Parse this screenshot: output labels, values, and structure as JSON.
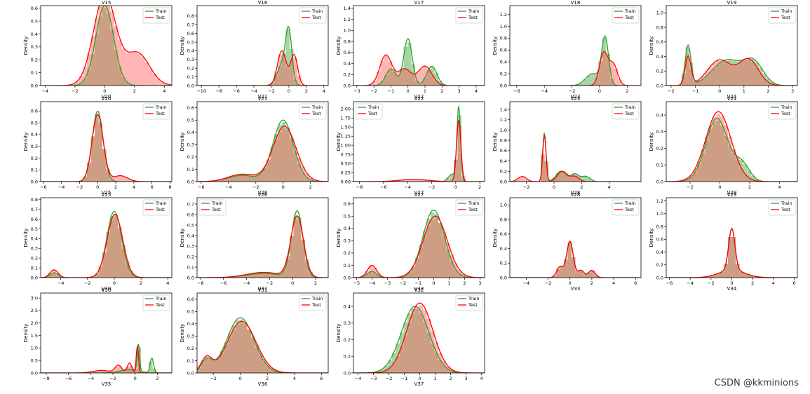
{
  "watermark": "CSDN @kkminions",
  "colors": {
    "train": "#2ca02c",
    "test": "#ff0000",
    "train_hist": "#3aa13a",
    "test_hist": "#ff5a5a"
  },
  "chart_data": [
    {
      "type": "area",
      "title": "V15",
      "xlabel": "V20",
      "ylabel": "Density",
      "xlim": [
        -4.3,
        4.5
      ],
      "ylim": [
        0,
        0.62
      ],
      "xticks": [
        -4,
        -2,
        0,
        2,
        4
      ],
      "yticks": [
        0.0,
        0.1,
        0.2,
        0.3,
        0.4,
        0.5,
        0.6
      ],
      "legend": "top-right",
      "series": [
        {
          "name": "Train",
          "components": [
            [
              0.62,
              0,
              0.6
            ]
          ]
        },
        {
          "name": "Test",
          "components": [
            [
              0.7,
              0,
              0.75
            ],
            [
              0.25,
              2.2,
              0.8
            ]
          ]
        }
      ]
    },
    {
      "type": "area",
      "title": "V16",
      "xlabel": "V21",
      "ylabel": "Density",
      "xlim": [
        -10.5,
        4.5
      ],
      "ylim": [
        0,
        0.92
      ],
      "xticks": [
        -10,
        -8,
        -6,
        -4,
        -2,
        0,
        2,
        4
      ],
      "yticks": [
        0.0,
        0.1,
        0.2,
        0.3,
        0.4,
        0.5,
        0.6,
        0.7,
        0.8
      ],
      "legend": "top-right",
      "series": [
        {
          "name": "Train",
          "components": [
            [
              0.55,
              0,
              0.35
            ],
            [
              0.25,
              -0.7,
              0.6
            ]
          ]
        },
        {
          "name": "Test",
          "components": [
            [
              0.4,
              -0.8,
              0.5
            ],
            [
              0.35,
              0.6,
              0.4
            ]
          ]
        }
      ]
    },
    {
      "type": "area",
      "title": "V17",
      "xlabel": "V22",
      "ylabel": "Density",
      "xlim": [
        -3.2,
        4.5
      ],
      "ylim": [
        0,
        1.45
      ],
      "xticks": [
        -3,
        -2,
        -1,
        0,
        1,
        2,
        3,
        4
      ],
      "yticks": [
        0.0,
        0.2,
        0.4,
        0.6,
        0.8,
        1.0,
        1.2,
        1.4
      ],
      "legend": "top-right",
      "series": [
        {
          "name": "Train",
          "components": [
            [
              0.85,
              0,
              0.25
            ],
            [
              0.3,
              -1,
              0.3
            ],
            [
              0.35,
              1.4,
              0.3
            ]
          ]
        },
        {
          "name": "Test",
          "components": [
            [
              0.55,
              -1.3,
              0.35
            ],
            [
              0.3,
              -0.2,
              0.4
            ],
            [
              0.35,
              1,
              0.4
            ]
          ]
        }
      ]
    },
    {
      "type": "area",
      "title": "V18",
      "xlabel": "V23",
      "ylabel": "Density",
      "xlim": [
        -6.5,
        3
      ],
      "ylim": [
        0,
        1.35
      ],
      "xticks": [
        -6,
        -4,
        -2,
        0,
        2
      ],
      "yticks": [
        0.0,
        0.2,
        0.4,
        0.6,
        0.8,
        1.0,
        1.2
      ],
      "legend": "top-right",
      "series": [
        {
          "name": "Train",
          "components": [
            [
              0.8,
              0.4,
              0.25
            ],
            [
              0.2,
              -0.5,
              0.5
            ]
          ]
        },
        {
          "name": "Test",
          "components": [
            [
              0.55,
              0.3,
              0.3
            ],
            [
              0.35,
              1,
              0.3
            ]
          ]
        }
      ]
    },
    {
      "type": "area",
      "title": "V19",
      "xlabel": "V24",
      "ylabel": "Density",
      "xlim": [
        -2.2,
        3.2
      ],
      "ylim": [
        0,
        1.1
      ],
      "xticks": [
        -2,
        -1,
        0,
        1,
        2,
        3
      ],
      "yticks": [
        0.0,
        0.2,
        0.4,
        0.6,
        0.8,
        1.0
      ],
      "legend": "top-right",
      "series": [
        {
          "name": "Train",
          "components": [
            [
              0.55,
              -1.3,
              0.12
            ],
            [
              0.35,
              0.3,
              0.6
            ],
            [
              0.3,
              1.4,
              0.4
            ]
          ]
        },
        {
          "name": "Test",
          "components": [
            [
              0.4,
              -1.3,
              0.12
            ],
            [
              0.35,
              0,
              0.5
            ],
            [
              0.35,
              1.2,
              0.4
            ]
          ]
        }
      ]
    },
    {
      "type": "area",
      "title": "V20",
      "xlabel": "V25",
      "ylabel": "Density",
      "xlim": [
        -6.3,
        8.2
      ],
      "ylim": [
        0,
        0.68
      ],
      "xticks": [
        -6,
        -4,
        -2,
        0,
        2,
        4,
        6,
        8
      ],
      "yticks": [
        0.0,
        0.1,
        0.2,
        0.3,
        0.4,
        0.5,
        0.6
      ],
      "legend": "top-right",
      "series": [
        {
          "name": "Train",
          "components": [
            [
              0.6,
              0,
              0.6
            ]
          ]
        },
        {
          "name": "Test",
          "components": [
            [
              0.57,
              0,
              0.62
            ],
            [
              0.05,
              2.5,
              0.8
            ]
          ]
        }
      ]
    },
    {
      "type": "area",
      "title": "V21",
      "xlabel": "V26",
      "ylabel": "Density",
      "xlim": [
        -6.3,
        3.3
      ],
      "ylim": [
        0,
        0.65
      ],
      "xticks": [
        -6,
        -4,
        -2,
        0,
        2
      ],
      "yticks": [
        0.0,
        0.1,
        0.2,
        0.3,
        0.4,
        0.5,
        0.6
      ],
      "legend": "top-right",
      "series": [
        {
          "name": "Train",
          "components": [
            [
              0.5,
              0,
              0.75
            ],
            [
              0.05,
              -3,
              1
            ]
          ]
        },
        {
          "name": "Test",
          "components": [
            [
              0.45,
              0.1,
              0.85
            ],
            [
              0.06,
              -3,
              1
            ]
          ]
        }
      ]
    },
    {
      "type": "area",
      "title": "V22",
      "xlabel": "V27",
      "ylabel": "Density",
      "xlim": [
        -8.5,
        2.4
      ],
      "ylim": [
        0,
        2.2
      ],
      "xticks": [
        -8,
        -6,
        -4,
        -2,
        0,
        2
      ],
      "yticks": [
        0.0,
        0.25,
        0.5,
        0.75,
        1.0,
        1.25,
        1.5,
        1.75,
        2.0
      ],
      "legend": "top-left",
      "series": [
        {
          "name": "Train",
          "components": [
            [
              2.05,
              0.25,
              0.15
            ],
            [
              0.2,
              -0.3,
              0.3
            ]
          ]
        },
        {
          "name": "Test",
          "components": [
            [
              1.7,
              0.25,
              0.18
            ],
            [
              0.06,
              -3.5,
              1.2
            ]
          ]
        }
      ]
    },
    {
      "type": "area",
      "title": "V23",
      "xlabel": "V28",
      "ylabel": "Density",
      "xlim": [
        -3.2,
        6.3
      ],
      "ylim": [
        0,
        1.55
      ],
      "xticks": [
        -2,
        0,
        2,
        4
      ],
      "yticks": [
        0.0,
        0.2,
        0.4,
        0.6,
        0.8,
        1.0,
        1.2,
        1.4
      ],
      "legend": "top-right",
      "series": [
        {
          "name": "Train",
          "components": [
            [
              0.95,
              -0.7,
              0.12
            ],
            [
              0.2,
              0.5,
              0.35
            ],
            [
              0.15,
              1.5,
              0.3
            ],
            [
              0.1,
              2.3,
              0.3
            ]
          ]
        },
        {
          "name": "Test",
          "components": [
            [
              0.9,
              -0.7,
              0.12
            ],
            [
              0.2,
              0.6,
              0.35
            ],
            [
              0.1,
              -2.3,
              0.3
            ],
            [
              0.1,
              1.5,
              0.3
            ]
          ]
        }
      ]
    },
    {
      "type": "area",
      "title": "V24",
      "xlabel": "V29",
      "ylabel": "Density",
      "xlim": [
        -3.6,
        5.2
      ],
      "ylim": [
        0,
        0.48
      ],
      "xticks": [
        -2,
        0,
        2,
        4
      ],
      "yticks": [
        0.0,
        0.1,
        0.2,
        0.3,
        0.4
      ],
      "legend": "top-right",
      "series": [
        {
          "name": "Train",
          "components": [
            [
              0.38,
              -0.2,
              0.75
            ],
            [
              0.1,
              1.5,
              0.5
            ]
          ]
        },
        {
          "name": "Test",
          "components": [
            [
              0.42,
              -0.1,
              0.85
            ]
          ]
        }
      ]
    },
    {
      "type": "area",
      "title": "V25",
      "xlabel": "V30",
      "ylabel": "Density",
      "xlim": [
        -5.5,
        4.3
      ],
      "ylim": [
        0,
        0.82
      ],
      "xticks": [
        -4,
        -2,
        0,
        2,
        4
      ],
      "yticks": [
        0.0,
        0.1,
        0.2,
        0.3,
        0.4,
        0.5,
        0.6,
        0.7,
        0.8
      ],
      "legend": "top-right",
      "series": [
        {
          "name": "Train",
          "components": [
            [
              0.68,
              0,
              0.55
            ],
            [
              0.05,
              -4.5,
              0.3
            ]
          ]
        },
        {
          "name": "Test",
          "components": [
            [
              0.65,
              0.05,
              0.58
            ],
            [
              0.08,
              -4.5,
              0.3
            ]
          ]
        }
      ]
    },
    {
      "type": "area",
      "title": "V26",
      "xlabel": "V31",
      "ylabel": "Density",
      "xlim": [
        -8.3,
        3.1
      ],
      "ylim": [
        0,
        0.76
      ],
      "xticks": [
        -8,
        -6,
        -4,
        -2,
        0,
        2
      ],
      "yticks": [
        0.0,
        0.1,
        0.2,
        0.3,
        0.4,
        0.5,
        0.6,
        0.7
      ],
      "legend": "top-left",
      "series": [
        {
          "name": "Train",
          "components": [
            [
              0.63,
              0.4,
              0.5
            ],
            [
              0.04,
              -2.5,
              1.5
            ]
          ]
        },
        {
          "name": "Test",
          "components": [
            [
              0.58,
              0.4,
              0.55
            ],
            [
              0.05,
              -2.5,
              1.5
            ]
          ]
        }
      ]
    },
    {
      "type": "area",
      "title": "V27",
      "xlabel": "V32",
      "ylabel": "Density",
      "xlim": [
        -5.2,
        3.3
      ],
      "ylim": [
        0,
        0.65
      ],
      "xticks": [
        -5,
        -4,
        -3,
        -2,
        -1,
        0,
        1,
        2,
        3
      ],
      "yticks": [
        0.0,
        0.1,
        0.2,
        0.3,
        0.4,
        0.5,
        0.6
      ],
      "legend": "top-right",
      "series": [
        {
          "name": "Train",
          "components": [
            [
              0.55,
              0,
              0.7
            ],
            [
              0.05,
              -4,
              0.3
            ]
          ]
        },
        {
          "name": "Test",
          "components": [
            [
              0.5,
              0.1,
              0.78
            ],
            [
              0.1,
              -4,
              0.3
            ]
          ]
        }
      ]
    },
    {
      "type": "area",
      "title": "V28",
      "xlabel": "V33",
      "ylabel": "Density",
      "xlim": [
        -5.5,
        6.5
      ],
      "ylim": [
        0,
        1.1
      ],
      "xticks": [
        -4,
        -2,
        0,
        2,
        4,
        6
      ],
      "yticks": [
        0.0,
        0.2,
        0.4,
        0.6,
        0.8,
        1.0
      ],
      "legend": "top-right",
      "series": [
        {
          "name": "Train",
          "components": [
            [
              0.5,
              0,
              0.3
            ],
            [
              0.15,
              -0.9,
              0.3
            ],
            [
              0.1,
              1,
              0.3
            ],
            [
              0.1,
              2,
              0.3
            ]
          ]
        },
        {
          "name": "Test",
          "components": [
            [
              0.5,
              0,
              0.3
            ],
            [
              0.15,
              -0.9,
              0.3
            ],
            [
              0.1,
              1,
              0.3
            ],
            [
              0.1,
              2,
              0.3
            ]
          ]
        }
      ]
    },
    {
      "type": "area",
      "title": "V29",
      "xlabel": "V34",
      "ylabel": "Density",
      "xlim": [
        -6.3,
        6.3
      ],
      "ylim": [
        0,
        1.25
      ],
      "xticks": [
        -6,
        -4,
        -2,
        0,
        2,
        4,
        6
      ],
      "yticks": [
        0.0,
        0.2,
        0.4,
        0.6,
        0.8,
        1.0,
        1.2
      ],
      "legend": "top-right",
      "series": [
        {
          "name": "Train",
          "components": [
            [
              0.65,
              0,
              0.3
            ],
            [
              0.12,
              0,
              1.2
            ]
          ]
        },
        {
          "name": "Test",
          "components": [
            [
              0.65,
              0,
              0.3
            ],
            [
              0.12,
              0,
              1.2
            ]
          ]
        }
      ]
    },
    {
      "type": "area",
      "title": "V30",
      "xlabel": "V35",
      "ylabel": "Density",
      "xlim": [
        -8.5,
        3.3
      ],
      "ylim": [
        0,
        3.2
      ],
      "xticks": [
        -8,
        -6,
        -4,
        -2,
        0,
        2
      ],
      "yticks": [
        0.0,
        0.5,
        1.0,
        1.5,
        2.0,
        2.5,
        3.0
      ],
      "legend": "top-right",
      "series": [
        {
          "name": "Train",
          "components": [
            [
              1.1,
              0.3,
              0.1
            ],
            [
              0.6,
              1.5,
              0.15
            ],
            [
              0.15,
              -0.5,
              0.8
            ]
          ]
        },
        {
          "name": "Test",
          "components": [
            [
              1.1,
              0.2,
              0.1
            ],
            [
              0.4,
              -0.5,
              0.2
            ],
            [
              0.3,
              -1.5,
              0.3
            ],
            [
              0.1,
              -3,
              0.8
            ]
          ]
        }
      ]
    },
    {
      "type": "area",
      "title": "V31",
      "xlabel": "V36",
      "ylabel": "Density",
      "xlim": [
        -3.2,
        6.5
      ],
      "ylim": [
        0,
        0.65
      ],
      "xticks": [
        -2,
        0,
        2,
        4,
        6
      ],
      "yticks": [
        0.0,
        0.1,
        0.2,
        0.3,
        0.4,
        0.5,
        0.6
      ],
      "legend": "top-right",
      "series": [
        {
          "name": "Train",
          "components": [
            [
              0.45,
              0,
              1
            ],
            [
              0.1,
              -2.5,
              0.4
            ]
          ]
        },
        {
          "name": "Test",
          "components": [
            [
              0.42,
              0.1,
              1.05
            ],
            [
              0.12,
              -2.5,
              0.4
            ]
          ]
        }
      ]
    },
    {
      "type": "area",
      "title": "V32",
      "xlabel": "V37",
      "ylabel": "Density",
      "xlim": [
        -4.3,
        4.2
      ],
      "ylim": [
        0,
        0.48
      ],
      "xticks": [
        -4,
        -3,
        -2,
        -1,
        0,
        1,
        2,
        3,
        4
      ],
      "yticks": [
        0.0,
        0.1,
        0.2,
        0.3,
        0.4
      ],
      "legend": "top-right",
      "series": [
        {
          "name": "Train",
          "components": [
            [
              0.4,
              -0.3,
              0.9
            ]
          ]
        },
        {
          "name": "Test",
          "components": [
            [
              0.42,
              0,
              0.85
            ]
          ]
        }
      ]
    }
  ]
}
